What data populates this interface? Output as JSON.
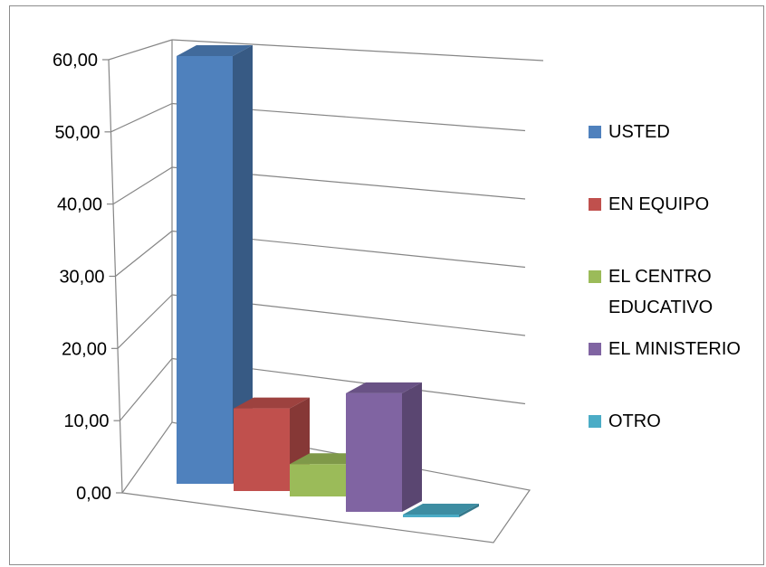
{
  "chart_data": {
    "type": "bar",
    "title": "",
    "xlabel": "",
    "ylabel": "",
    "ylim": [
      0,
      60
    ],
    "yticks": [
      "0,00",
      "10,00",
      "20,00",
      "30,00",
      "40,00",
      "50,00",
      "60,00"
    ],
    "grid": true,
    "legend_position": "right",
    "series": [
      {
        "name": "USTED",
        "value": 59.5,
        "color": "#4f81bd"
      },
      {
        "name": "EN EQUIPO",
        "value": 11.5,
        "color": "#c0504d"
      },
      {
        "name": "EL CENTRO EDUCATIVO",
        "value": 4.5,
        "color": "#9bbb59"
      },
      {
        "name": "EL MINISTERIO",
        "value": 16.5,
        "color": "#8064a2"
      },
      {
        "name": "OTRO",
        "value": 0.3,
        "color": "#4bacc6"
      }
    ]
  }
}
